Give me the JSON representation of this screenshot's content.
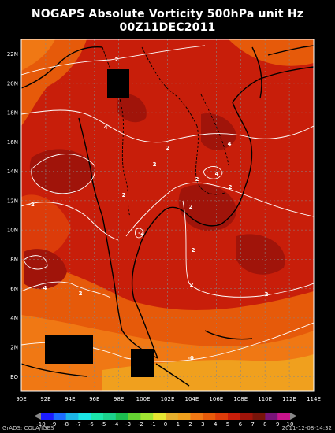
{
  "title": "NOGAPS Absolute Vorticity 500hPa unit Hz",
  "subtitle": "00Z11DEC2011",
  "credit": "GrADS: COLA/IGES",
  "timestamp": "2011-12-08-14:32",
  "x_ticks": [
    "90E",
    "92E",
    "94E",
    "96E",
    "98E",
    "100E",
    "102E",
    "104E",
    "106E",
    "108E",
    "110E",
    "112E",
    "114E"
  ],
  "y_ticks": [
    "EQ",
    "2N",
    "4N",
    "6N",
    "8N",
    "10N",
    "12N",
    "14N",
    "16N",
    "18N",
    "20N",
    "22N"
  ],
  "contour_labels": [
    "2",
    "2",
    "4",
    "2",
    "2",
    "4",
    "4",
    "2",
    "2",
    "-2",
    "2",
    "2",
    "2",
    "4",
    "2",
    "2",
    "-2",
    "-0"
  ],
  "colorbar": {
    "labels": [
      "-10",
      "-9",
      "-8",
      "-7",
      "-6",
      "-5",
      "-4",
      "-3",
      "-2",
      "-1",
      "0",
      "1",
      "2",
      "3",
      "4",
      "5",
      "6",
      "7",
      "8",
      "9",
      "10"
    ],
    "colors": [
      "#1c1cff",
      "#1c6cff",
      "#1cb4e6",
      "#1ce6e6",
      "#1ce6aa",
      "#1cd28c",
      "#1cbe50",
      "#64d232",
      "#a0e632",
      "#e6e632",
      "#e6af2d",
      "#f0a01e",
      "#f07814",
      "#e65a0a",
      "#dc3c0a",
      "#c81e0a",
      "#a0140a",
      "#78140a",
      "#781478",
      "#c8148c"
    ]
  }
}
